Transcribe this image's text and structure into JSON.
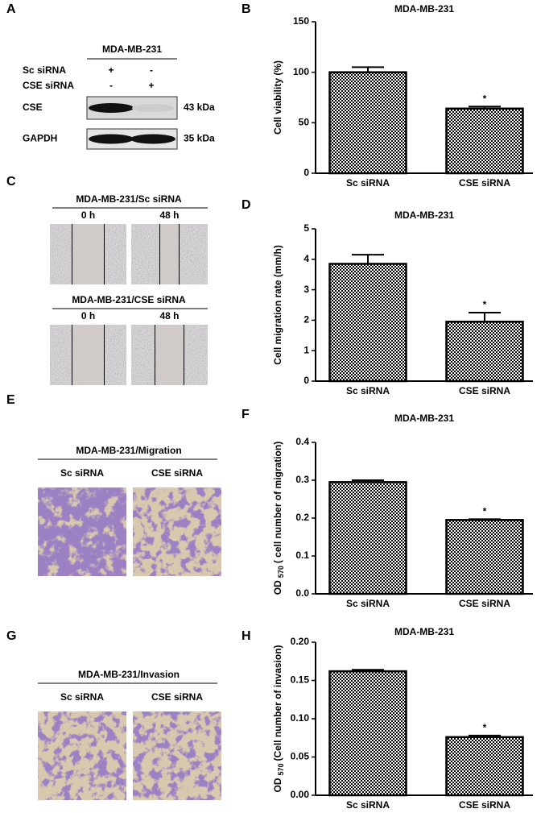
{
  "blot": {
    "panel": "A",
    "title": "MDA-MB-231",
    "conditions": [
      {
        "name": "Sc siRNA",
        "marks": [
          "+",
          "-"
        ]
      },
      {
        "name": "CSE siRNA",
        "marks": [
          "-",
          "+"
        ]
      }
    ],
    "bands": [
      {
        "name": "CSE",
        "size": "43 kDa"
      },
      {
        "name": "GAPDH",
        "size": "35 kDa"
      }
    ]
  },
  "scratch": {
    "panel": "C",
    "groups": [
      {
        "title": "MDA-MB-231/Sc siRNA",
        "times": [
          "0 h",
          "48 h"
        ]
      },
      {
        "title": "MDA-MB-231/CSE siRNA",
        "times": [
          "0 h",
          "48 h"
        ]
      }
    ]
  },
  "transwell": [
    {
      "panel": "E",
      "title": "MDA-MB-231/Migration",
      "groups": [
        "Sc siRNA",
        "CSE siRNA"
      ]
    },
    {
      "panel": "G",
      "title": "MDA-MB-231/Invasion",
      "groups": [
        "Sc siRNA",
        "CSE siRNA"
      ]
    }
  ],
  "chart_data": [
    {
      "type": "bar",
      "panel": "B",
      "title": "MDA-MB-231",
      "ylabel": "Cell viability (%)",
      "categories": [
        "Sc siRNA",
        "CSE siRNA"
      ],
      "values": [
        100,
        64
      ],
      "errors": [
        5,
        2
      ],
      "color": "#000000",
      "annotation": "*",
      "ylim": [
        0,
        150
      ],
      "yticks": [
        0,
        50,
        100,
        150
      ]
    },
    {
      "type": "bar",
      "panel": "D",
      "title": "MDA-MB-231",
      "ylabel": "Cell migration rate (mm/h)",
      "categories": [
        "Sc siRNA",
        "CSE siRNA"
      ],
      "values": [
        3.85,
        1.95
      ],
      "errors": [
        0.3,
        0.3
      ],
      "color": "#000000",
      "annotation": "*",
      "ylim": [
        0,
        5
      ],
      "yticks": [
        0,
        1,
        2,
        3,
        4,
        5
      ]
    },
    {
      "type": "bar",
      "panel": "F",
      "title": "MDA-MB-231",
      "ylabel": {
        "main": "OD",
        "sub": "570",
        "rest": "( cell number of  migration)"
      },
      "categories": [
        "Sc siRNA",
        "CSE siRNA"
      ],
      "values": [
        0.295,
        0.195
      ],
      "errors": [
        0.005,
        0.002
      ],
      "color": "#000000",
      "annotation": "*",
      "ylim": [
        0,
        0.4
      ],
      "yticks": [
        {
          "value": 0,
          "label": "0.0"
        },
        0.1,
        0.2,
        0.3,
        0.4
      ]
    },
    {
      "type": "bar",
      "panel": "H",
      "title": "MDA-MB-231",
      "ylabel": {
        "main": "OD",
        "sub": "570",
        "rest": "(Cell number of  invasion)"
      },
      "categories": [
        "Sc siRNA",
        "CSE siRNA"
      ],
      "values": [
        0.162,
        0.076
      ],
      "errors": [
        0.002,
        0.002
      ],
      "color": "#000000",
      "annotation": "*",
      "ylim": [
        0,
        0.2
      ],
      "yticks": [
        {
          "value": 0,
          "label": "0.00"
        },
        0.05,
        {
          "value": 0.1,
          "label": "0.10"
        },
        0.15,
        {
          "value": 0.2,
          "label": "0.20"
        }
      ]
    }
  ]
}
